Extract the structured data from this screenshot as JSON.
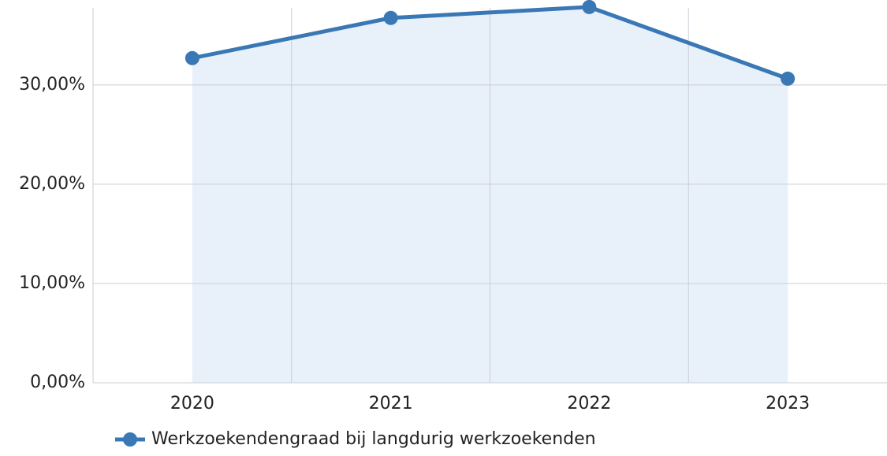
{
  "chart_data": {
    "type": "line",
    "categories": [
      "2020",
      "2021",
      "2022",
      "2023"
    ],
    "series": [
      {
        "name": "Werkzoekendengraad bij langdurig werkzoekenden",
        "color": "#3a78b5",
        "values": [
          32.7,
          36.75,
          37.85,
          30.63
        ]
      }
    ],
    "ylim": [
      0,
      38
    ],
    "yticks": [
      {
        "value": 0,
        "label": "0,00%"
      },
      {
        "value": 10,
        "label": "10,00%"
      },
      {
        "value": 20,
        "label": "20,00%"
      },
      {
        "value": 30,
        "label": "30,00%"
      }
    ],
    "grid": true,
    "area": true,
    "legend": "bottom"
  }
}
